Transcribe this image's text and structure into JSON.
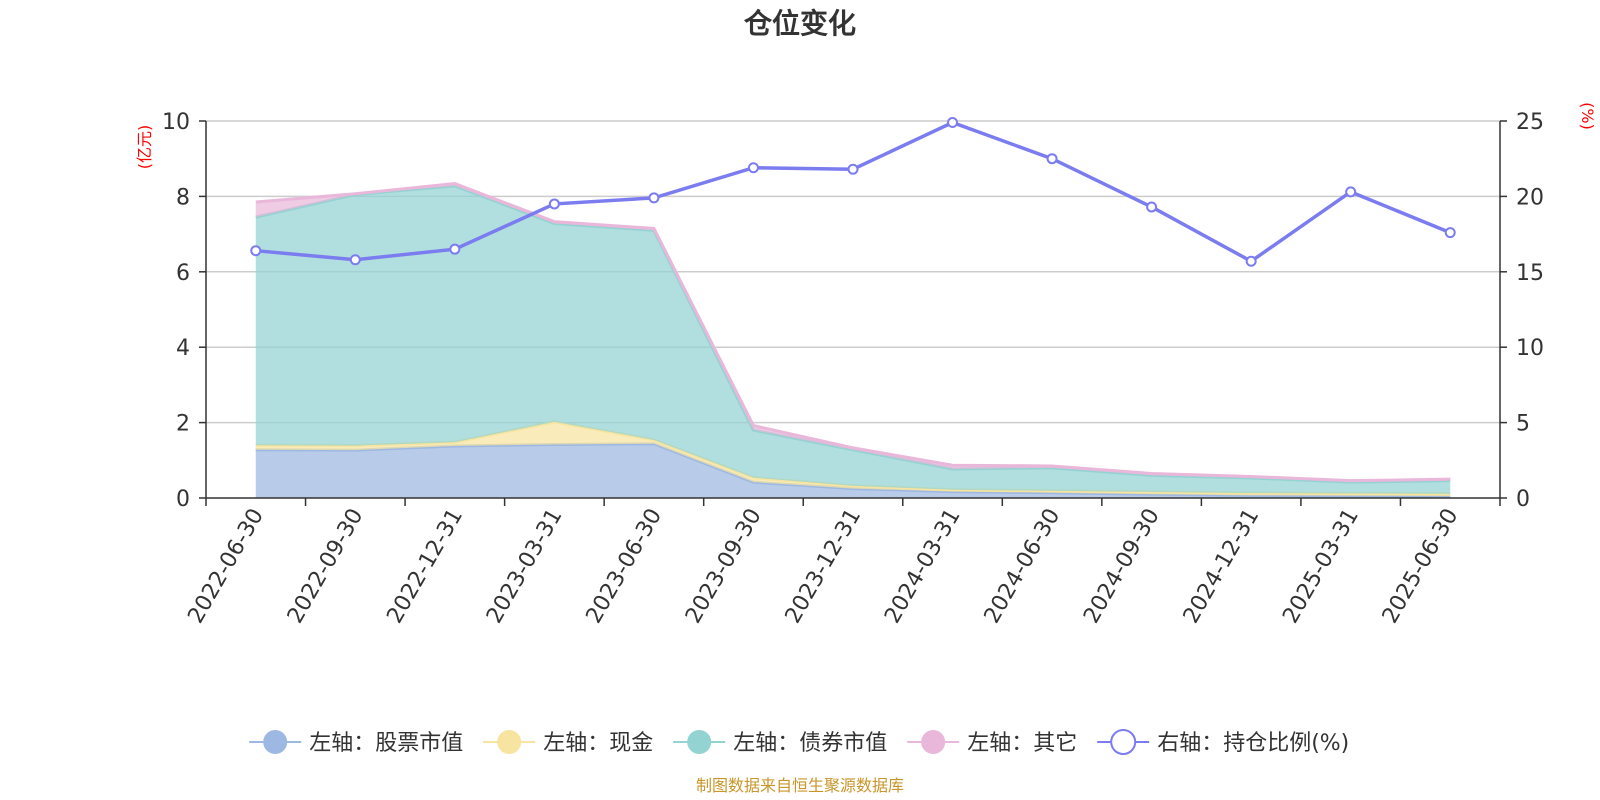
{
  "chart_data": {
    "type": "area",
    "title": "仓位变化",
    "categories": [
      "2022-06-30",
      "2022-09-30",
      "2022-12-31",
      "2023-03-31",
      "2023-06-30",
      "2023-09-30",
      "2023-12-31",
      "2024-03-31",
      "2024-06-30",
      "2024-09-30",
      "2024-12-31",
      "2025-03-31",
      "2025-06-30"
    ],
    "stacked": true,
    "y_left": {
      "unit": "(亿元)",
      "ylim": [
        0,
        10
      ],
      "ticks": [
        "0",
        "2",
        "4",
        "6",
        "8",
        "10"
      ]
    },
    "y_right": {
      "unit": "(%)",
      "ylim": [
        0,
        25
      ],
      "ticks": [
        "0",
        "5",
        "10",
        "15",
        "20",
        "25"
      ]
    },
    "grid": true,
    "legend_position": "bottom",
    "series": [
      {
        "name": "左轴：股票市值",
        "axis": "left",
        "type": "area",
        "color": "#9db8e2",
        "values": [
          1.28,
          1.27,
          1.38,
          1.42,
          1.44,
          0.42,
          0.25,
          0.17,
          0.14,
          0.1,
          0.07,
          0.06,
          0.05
        ]
      },
      {
        "name": "左轴：现金",
        "axis": "left",
        "type": "area",
        "color": "#f7e4a0",
        "values": [
          0.12,
          0.12,
          0.1,
          0.6,
          0.1,
          0.12,
          0.07,
          0.05,
          0.05,
          0.06,
          0.06,
          0.06,
          0.06
        ]
      },
      {
        "name": "左轴：债券市值",
        "axis": "left",
        "type": "area",
        "color": "#93d3d2",
        "values": [
          6.05,
          6.66,
          6.8,
          5.26,
          5.56,
          1.26,
          0.96,
          0.55,
          0.61,
          0.44,
          0.4,
          0.3,
          0.35
        ]
      },
      {
        "name": "左轴：其它",
        "axis": "left",
        "type": "area",
        "color": "#e9b7da",
        "values": [
          0.4,
          0.02,
          0.06,
          0.05,
          0.05,
          0.12,
          0.05,
          0.1,
          0.05,
          0.05,
          0.04,
          0.04,
          0.04
        ]
      },
      {
        "name": "右轴：持仓比例(%)",
        "axis": "right",
        "type": "line",
        "color": "#7b7cf0",
        "values": [
          16.4,
          15.8,
          16.5,
          19.5,
          19.9,
          21.9,
          21.8,
          24.9,
          22.5,
          19.3,
          15.7,
          20.3,
          17.6
        ]
      }
    ]
  },
  "source_note": "制图数据来自恒生聚源数据库"
}
